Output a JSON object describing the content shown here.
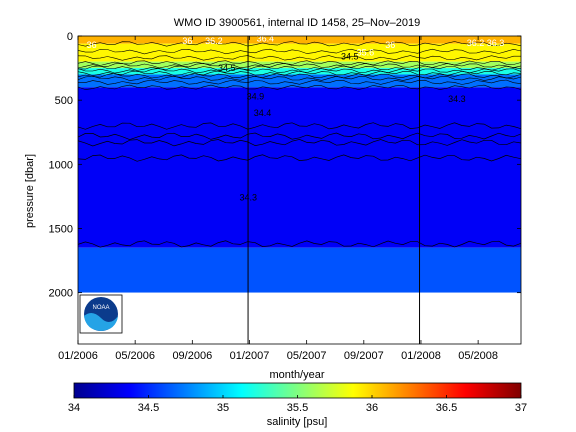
{
  "chart_data": {
    "type": "heatmap",
    "title": "WMO ID 3900561, internal ID 1458, 25–Nov–2019",
    "xlabel": "month/year",
    "ylabel": "pressure [dbar]",
    "colorbar_label": "salinity [psu]",
    "x_tick_labels": [
      "01/2006",
      "05/2006",
      "09/2006",
      "01/2007",
      "05/2007",
      "09/2007",
      "01/2008",
      "05/2008"
    ],
    "y_ticks": [
      0,
      500,
      1000,
      1500,
      2000
    ],
    "y_tick_labels": [
      "0",
      "500",
      "1000",
      "1500",
      "2000"
    ],
    "ylim": [
      0,
      2400
    ],
    "y_reversed": true,
    "xlim_months": [
      0,
      31
    ],
    "colorbar_ticks": [
      34,
      34.5,
      35,
      35.5,
      36,
      36.5,
      37
    ],
    "colorbar_tick_labels": [
      "34",
      "34.5",
      "35",
      "35.5",
      "36",
      "36.5",
      "37"
    ],
    "clim": [
      34,
      37
    ],
    "colormap": "jet",
    "year_separators_months": [
      11.9,
      23.9
    ],
    "salinity_layers": [
      {
        "pressure_range": [
          0,
          60
        ],
        "salinity": 36.1
      },
      {
        "pressure_range": [
          60,
          200
        ],
        "salinity": 35.9
      },
      {
        "pressure_range": [
          200,
          250
        ],
        "salinity": 35.6
      },
      {
        "pressure_range": [
          250,
          300
        ],
        "salinity": 35.2
      },
      {
        "pressure_range": [
          300,
          400
        ],
        "salinity": 34.7
      },
      {
        "pressure_range": [
          400,
          1650
        ],
        "salinity": 34.35
      },
      {
        "pressure_range": [
          1650,
          2000
        ],
        "salinity": 34.62
      }
    ],
    "contour_labels": [
      {
        "text": "36",
        "month": 0.6,
        "pressure": 70
      },
      {
        "text": "36",
        "month": 7.3,
        "pressure": 40
      },
      {
        "text": "36.2",
        "month": 8.9,
        "pressure": 40
      },
      {
        "text": "36.4",
        "month": 12.5,
        "pressure": 20
      },
      {
        "text": "35.6",
        "month": 19.5,
        "pressure": 130
      },
      {
        "text": "36",
        "month": 21.5,
        "pressure": 70
      },
      {
        "text": "36.2",
        "month": 27.2,
        "pressure": 55
      },
      {
        "text": "36.3",
        "month": 28.6,
        "pressure": 55
      },
      {
        "text": "34.5",
        "month": 9.8,
        "pressure": 250
      },
      {
        "text": "34.5",
        "month": 18.4,
        "pressure": 160
      },
      {
        "text": "34.9",
        "month": 11.8,
        "pressure": 470
      },
      {
        "text": "34.4",
        "month": 12.3,
        "pressure": 600
      },
      {
        "text": "34.3",
        "month": 25.9,
        "pressure": 490
      },
      {
        "text": "34.3",
        "month": 11.3,
        "pressure": 1260
      }
    ],
    "contour_line_depths": [
      700,
      780,
      830,
      950,
      1620
    ],
    "no_data_below_pressure": 2000,
    "logo_text": "NOAA"
  }
}
